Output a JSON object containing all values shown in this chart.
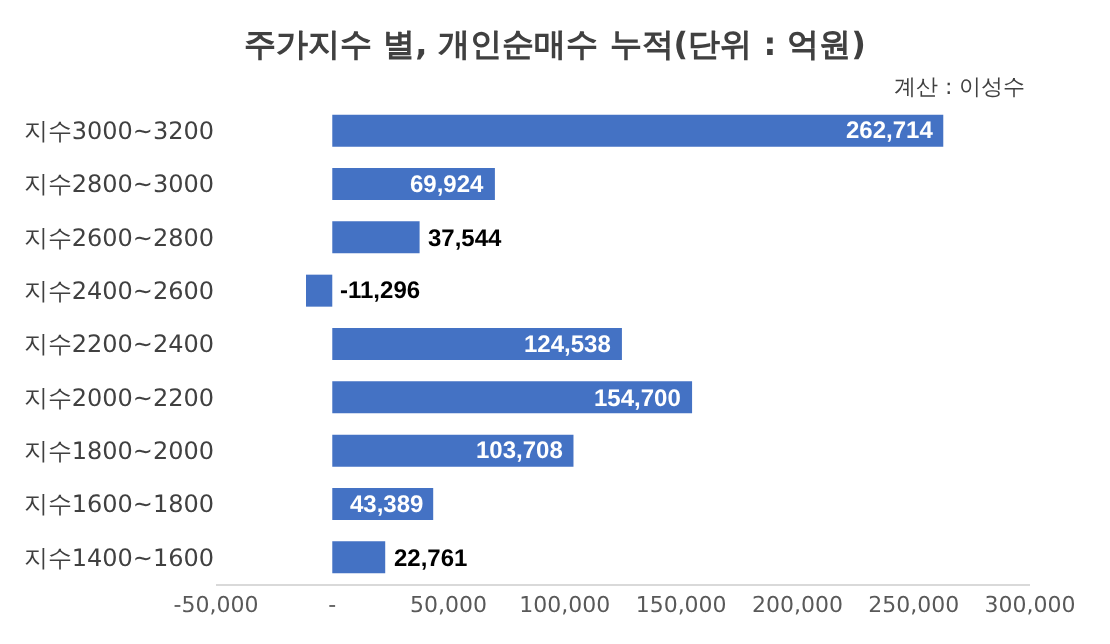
{
  "chart_data": {
    "type": "bar",
    "orientation": "horizontal",
    "title": "주가지수 별, 개인순매수 누적(단위 : 억원)",
    "categories": [
      "지수3000~3200",
      "지수2800~3000",
      "지수2600~2800",
      "지수2400~2600",
      "지수2200~2400",
      "지수2000~2200",
      "지수1800~2000",
      "지수1600~1800",
      "지수1400~1600"
    ],
    "values": [
      262714,
      69924,
      37544,
      -11296,
      124538,
      154700,
      103708,
      43389,
      22761
    ],
    "value_labels": [
      "262,714",
      "69,924",
      "37,544",
      "-11,296",
      "124,538",
      "154,700",
      "103,708",
      "43,389",
      "22,761"
    ],
    "color": "#4472c4",
    "xlim": [
      -50000,
      300000
    ],
    "xticks": [
      {
        "value": -50000,
        "label": "-50,000"
      },
      {
        "value": 0,
        "label": "-"
      },
      {
        "value": 50000,
        "label": "50,000"
      },
      {
        "value": 100000,
        "label": "100,000"
      },
      {
        "value": 150000,
        "label": "150,000"
      },
      {
        "value": 200000,
        "label": "200,000"
      },
      {
        "value": 250000,
        "label": "250,000"
      },
      {
        "value": 300000,
        "label": "300,000"
      }
    ],
    "grid": false,
    "annotations": [
      "계산 : 이성수"
    ]
  }
}
